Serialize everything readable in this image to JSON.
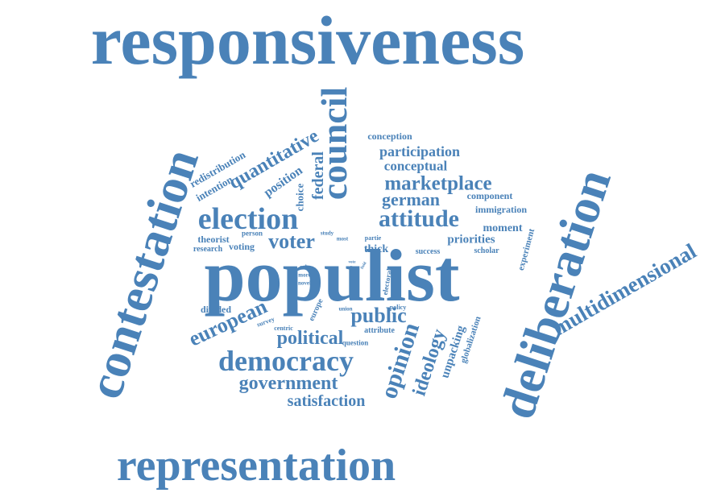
{
  "colors": {
    "word": "#4a82b8",
    "background": "#ffffff"
  },
  "words": {
    "responsiveness": "responsiveness",
    "contestation": "contestation",
    "council": "council",
    "deliberation": "deliberation",
    "representation": "representation",
    "populist": "populist",
    "multidimensional": "multidimensional",
    "election": "election",
    "attitude": "attitude",
    "democracy": "democracy",
    "government": "government",
    "satisfaction": "satisfaction",
    "european": "european",
    "political": "political",
    "public": "public",
    "opinion": "opinion",
    "ideology": "ideology",
    "voter": "voter",
    "marketplace": "marketplace",
    "german": "german",
    "participation": "participation",
    "conceptual": "conceptual",
    "conception": "conception",
    "quantitative": "quantitative",
    "federal": "federal",
    "position": "position",
    "choice": "choice",
    "redistribution": "redistribution",
    "intention": "intention",
    "component": "component",
    "immigration": "immigration",
    "moment": "moment",
    "priorities": "priorities",
    "experiment": "experiment",
    "scholar": "scholar",
    "success": "success",
    "thick": "thick",
    "partie": "partie",
    "most": "most",
    "study": "study",
    "person": "person",
    "theorist": "theorist",
    "voting": "voting",
    "research": "research",
    "divided": "divided",
    "survey": "survey",
    "centric": "centric",
    "europe": "europe",
    "role": "role",
    "more": "more",
    "novel": "novel",
    "vote": "vote",
    "elite": "elite",
    "field": "field",
    "electoral": "electoral",
    "union": "union",
    "policy": "policy",
    "attribute": "attribute",
    "question": "question",
    "unpacking": "unpacking",
    "globalization": "globalization"
  }
}
